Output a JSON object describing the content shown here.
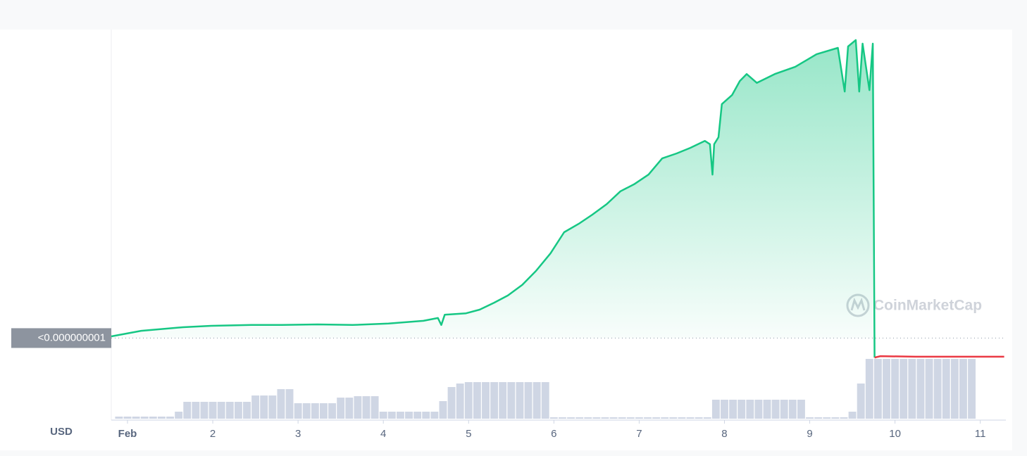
{
  "chart_data": {
    "type": "line",
    "currency": "USD",
    "watermark": "CoinMarketCap",
    "xlim": [
      0.81,
      11.3
    ],
    "xticks": [
      {
        "value": 1,
        "label": "Feb"
      },
      2,
      3,
      4,
      5,
      6,
      7,
      8,
      9,
      10,
      11
    ],
    "ylim": [
      0,
      1.2e-08
    ],
    "yticks": [
      {
        "value": 1e-09,
        "label": "<0.000000001"
      }
    ],
    "series": [
      {
        "color": "#16c784",
        "x": [
          0.81,
          1.16,
          1.65,
          1.98,
          2.45,
          2.81,
          3.23,
          3.64,
          4.06,
          4.47,
          4.64,
          4.68,
          4.72,
          4.97,
          5.13,
          5.3,
          5.46,
          5.63,
          5.79,
          5.96,
          6.12,
          6.29,
          6.45,
          6.62,
          6.78,
          6.94,
          7.11,
          7.27,
          7.44,
          7.6,
          7.77,
          7.83,
          7.86,
          7.88,
          7.93,
          7.97,
          8.09,
          8.18,
          8.26,
          8.38,
          8.59,
          8.83,
          9.08,
          9.33,
          9.41,
          9.45,
          9.54,
          9.58,
          9.62,
          9.7,
          9.74,
          9.76
        ],
        "values": [
          1.06e-09,
          1.26e-09,
          1.39e-09,
          1.44e-09,
          1.47e-09,
          1.47e-09,
          1.49e-09,
          1.47e-09,
          1.52e-09,
          1.62e-09,
          1.72e-09,
          1.47e-09,
          1.84e-09,
          1.89e-09,
          2.02e-09,
          2.27e-09,
          2.53e-09,
          2.91e-09,
          3.41e-09,
          4.04e-09,
          4.8e-09,
          5.1e-09,
          5.43e-09,
          5.81e-09,
          6.27e-09,
          6.52e-09,
          6.87e-09,
          7.45e-09,
          7.63e-09,
          7.83e-09,
          8.08e-09,
          7.96e-09,
          6.87e-09,
          7.96e-09,
          8.21e-09,
          9.4e-09,
          9.73e-09,
          1.023e-08,
          1.048e-08,
          1.016e-08,
          1.048e-08,
          1.074e-08,
          1.119e-08,
          1.142e-08,
          9.85e-09,
          1.147e-08,
          1.17e-08,
          9.85e-09,
          1.157e-08,
          9.9e-09,
          1.157e-08,
          3e-10
        ]
      },
      {
        "color": "#ea3943",
        "x": [
          9.76,
          9.83,
          10.24,
          11.28
        ],
        "values": [
          3e-10,
          3.5e-10,
          3.3e-10,
          3.3e-10
        ]
      }
    ],
    "volume": {
      "color": "#cfd6e4",
      "ylim": [
        0,
        90
      ],
      "x": [
        0.9,
        1.0,
        1.1,
        1.2,
        1.3,
        1.4,
        1.5,
        1.6,
        1.7,
        1.8,
        1.9,
        2.0,
        2.1,
        2.2,
        2.3,
        2.4,
        2.5,
        2.6,
        2.7,
        2.8,
        2.9,
        3.0,
        3.1,
        3.2,
        3.3,
        3.4,
        3.5,
        3.6,
        3.7,
        3.8,
        3.9,
        4.0,
        4.1,
        4.2,
        4.3,
        4.4,
        4.5,
        4.6,
        4.7,
        4.8,
        4.9,
        5.0,
        5.1,
        5.2,
        5.3,
        5.4,
        5.5,
        5.6,
        5.7,
        5.8,
        5.9,
        6.0,
        6.1,
        6.2,
        6.3,
        6.4,
        6.5,
        6.6,
        6.7,
        6.8,
        6.9,
        7.0,
        7.1,
        7.2,
        7.3,
        7.4,
        7.5,
        7.6,
        7.7,
        7.8,
        7.9,
        8.0,
        8.1,
        8.2,
        8.3,
        8.4,
        8.5,
        8.6,
        8.7,
        8.8,
        8.9,
        9.0,
        9.1,
        9.2,
        9.3,
        9.4,
        9.5,
        9.6,
        9.7,
        9.8,
        9.9,
        10.0,
        10.1,
        10.2,
        10.3,
        10.4,
        10.5,
        10.6,
        10.7,
        10.8,
        10.9
      ],
      "values": [
        3,
        3,
        3,
        3,
        3,
        3,
        3,
        10,
        24,
        24,
        24,
        24,
        24,
        24,
        24,
        24,
        33,
        33,
        33,
        42,
        42,
        22,
        22,
        22,
        22,
        22,
        30,
        30,
        32,
        32,
        32,
        10,
        10,
        10,
        10,
        10,
        10,
        10,
        25,
        45,
        50,
        52,
        52,
        52,
        52,
        52,
        52,
        52,
        52,
        52,
        52,
        2,
        2,
        2,
        2,
        2,
        2,
        2,
        2,
        2,
        2,
        2,
        2,
        2,
        2,
        2,
        2,
        2,
        2,
        2,
        27,
        27,
        27,
        27,
        27,
        27,
        27,
        27,
        27,
        27,
        27,
        2,
        2,
        2,
        2,
        2,
        10,
        50,
        85,
        85,
        85,
        85,
        85,
        85,
        85,
        85,
        85,
        85,
        85,
        85,
        85
      ]
    }
  }
}
